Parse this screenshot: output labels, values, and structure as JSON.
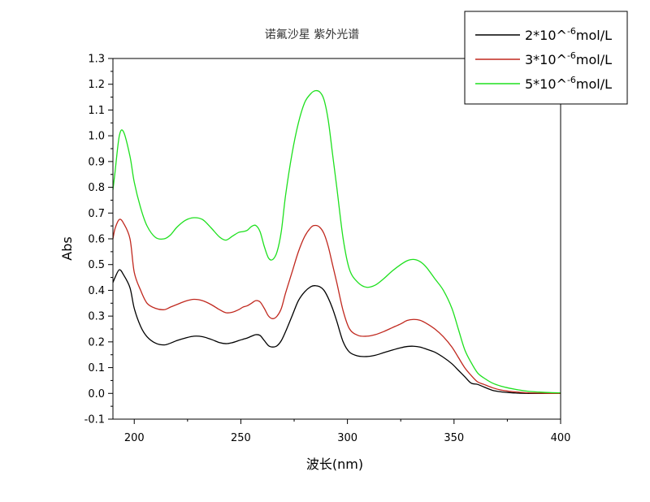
{
  "chart_data": {
    "type": "line",
    "title": "诺氟沙星 紫外光谱",
    "xlabel": "波长(nm)",
    "ylabel": "Abs",
    "xlim": [
      190,
      400
    ],
    "ylim": [
      -0.1,
      1.3
    ],
    "xticks": [
      200,
      250,
      300,
      350,
      400
    ],
    "yticks": [
      -0.1,
      0.0,
      0.1,
      0.2,
      0.3,
      0.4,
      0.5,
      0.6,
      0.7,
      0.8,
      0.9,
      1.0,
      1.1,
      1.2,
      1.3
    ],
    "grid": false,
    "legend_position": "top-right",
    "x": [
      190,
      191,
      193,
      195,
      198,
      200,
      203,
      206,
      210,
      214,
      217,
      220,
      224,
      228,
      232,
      236,
      240,
      243,
      246,
      249,
      251,
      253,
      255,
      257,
      259,
      261,
      263,
      265,
      267,
      269,
      271,
      274,
      277,
      280,
      283,
      285,
      287,
      289,
      291,
      293,
      295,
      298,
      301,
      305,
      309,
      313,
      317,
      321,
      325,
      328,
      331,
      334,
      337,
      341,
      345,
      349,
      352,
      355,
      358,
      361,
      364,
      368,
      372,
      376,
      380,
      385,
      390,
      395,
      400
    ],
    "series": [
      {
        "name": "2*10^-6mol/L",
        "color": "#000000",
        "legend_base": "2*10^",
        "legend_exp": "-6",
        "legend_unit": "mol/L",
        "values": [
          0.43,
          0.45,
          0.48,
          0.46,
          0.41,
          0.33,
          0.26,
          0.22,
          0.195,
          0.188,
          0.195,
          0.205,
          0.215,
          0.222,
          0.22,
          0.21,
          0.197,
          0.193,
          0.197,
          0.205,
          0.21,
          0.215,
          0.222,
          0.228,
          0.225,
          0.205,
          0.185,
          0.18,
          0.185,
          0.205,
          0.24,
          0.3,
          0.36,
          0.395,
          0.415,
          0.418,
          0.414,
          0.4,
          0.37,
          0.33,
          0.28,
          0.2,
          0.16,
          0.145,
          0.143,
          0.148,
          0.158,
          0.168,
          0.177,
          0.182,
          0.183,
          0.18,
          0.172,
          0.16,
          0.14,
          0.115,
          0.09,
          0.065,
          0.04,
          0.035,
          0.025,
          0.012,
          0.006,
          0.003,
          0.001,
          0.0,
          0.0,
          0.0,
          0.0
        ]
      },
      {
        "name": "3*10^-6mol/L",
        "color": "#c0281e",
        "legend_base": "3*10^",
        "legend_exp": "-6",
        "legend_unit": "mol/L",
        "values": [
          0.6,
          0.64,
          0.675,
          0.66,
          0.6,
          0.47,
          0.4,
          0.35,
          0.33,
          0.325,
          0.335,
          0.345,
          0.358,
          0.365,
          0.36,
          0.345,
          0.325,
          0.313,
          0.315,
          0.325,
          0.335,
          0.34,
          0.35,
          0.36,
          0.355,
          0.33,
          0.3,
          0.29,
          0.3,
          0.33,
          0.39,
          0.47,
          0.55,
          0.61,
          0.645,
          0.652,
          0.645,
          0.62,
          0.57,
          0.5,
          0.43,
          0.32,
          0.25,
          0.225,
          0.222,
          0.228,
          0.24,
          0.255,
          0.27,
          0.283,
          0.287,
          0.284,
          0.272,
          0.25,
          0.22,
          0.18,
          0.14,
          0.1,
          0.07,
          0.045,
          0.035,
          0.022,
          0.013,
          0.008,
          0.005,
          0.002,
          0.001,
          0.0,
          0.0
        ]
      },
      {
        "name": "5*10^-6mol/L",
        "color": "#1ee01e",
        "legend_base": "5*10^",
        "legend_exp": "-6",
        "legend_unit": "mol/L",
        "values": [
          0.79,
          0.86,
          1.0,
          1.015,
          0.92,
          0.82,
          0.72,
          0.65,
          0.605,
          0.6,
          0.615,
          0.645,
          0.672,
          0.682,
          0.675,
          0.643,
          0.607,
          0.595,
          0.61,
          0.625,
          0.628,
          0.633,
          0.648,
          0.652,
          0.628,
          0.57,
          0.525,
          0.52,
          0.55,
          0.63,
          0.77,
          0.93,
          1.05,
          1.13,
          1.165,
          1.175,
          1.17,
          1.14,
          1.06,
          0.93,
          0.8,
          0.6,
          0.48,
          0.43,
          0.412,
          0.42,
          0.445,
          0.475,
          0.5,
          0.515,
          0.52,
          0.512,
          0.49,
          0.445,
          0.4,
          0.33,
          0.25,
          0.17,
          0.12,
          0.08,
          0.06,
          0.04,
          0.028,
          0.02,
          0.014,
          0.008,
          0.005,
          0.003,
          0.002
        ]
      }
    ]
  }
}
